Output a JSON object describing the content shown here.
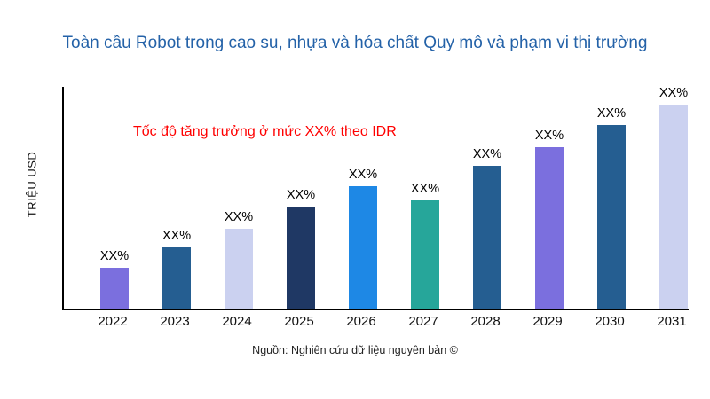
{
  "header": {
    "title": "Toàn cầu Robot trong cao su, nhựa và hóa chất Quy mô và phạm vi thị trường",
    "title_color": "#2462A8"
  },
  "chart_data": {
    "type": "bar",
    "title": "Toàn cầu Robot trong cao su, nhựa và hóa chất Quy mô và phạm vi thị trường",
    "ylabel": "TRIỆU USD",
    "xlabel": "",
    "annotation": "Tốc độ tăng trưởng ở mức XX% theo IDR",
    "annotation_color": "#FF0000",
    "categories": [
      "2022",
      "2023",
      "2024",
      "2025",
      "2026",
      "2027",
      "2028",
      "2029",
      "2030",
      "2031"
    ],
    "values": [
      20,
      30,
      39,
      50,
      60,
      53,
      70,
      79,
      90,
      100
    ],
    "bar_labels": [
      "XX%",
      "XX%",
      "XX%",
      "XX%",
      "XX%",
      "XX%",
      "XX%",
      "XX%",
      "XX%",
      "XX%"
    ],
    "bar_colors": [
      "#7B6FDE",
      "#255E91",
      "#CBD1F0",
      "#1F3864",
      "#1E88E5",
      "#26A69A",
      "#255E91",
      "#7B6FDE",
      "#255E91",
      "#CBD1F0"
    ],
    "ylim": [
      0,
      100
    ],
    "grid": false,
    "legend": "none",
    "axis_color": "#000000"
  },
  "footer": {
    "source": "Nguồn: Nghiên cứu dữ liệu nguyên bản ©"
  }
}
